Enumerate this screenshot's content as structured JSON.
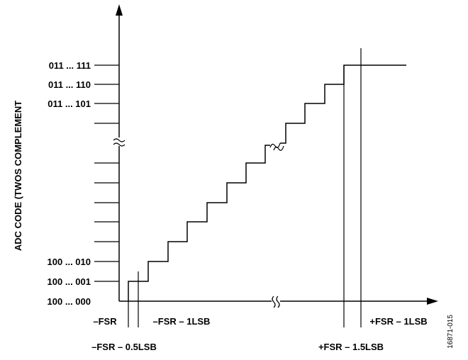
{
  "diagram": {
    "y_axis_label": "ADC CODE (TWOS COMPLEMENT",
    "y_codes_top": [
      "011 ... 111",
      "011 ... 110",
      "011 ... 101"
    ],
    "y_codes_bottom": [
      "100 ... 010",
      "100 ... 001",
      "100 ... 000"
    ],
    "x_labels": {
      "neg_fsr": "–FSR",
      "neg_fsr_minus_1lsb": "–FSR – 1LSB",
      "neg_fsr_minus_half_lsb": "–FSR – 0.5LSB",
      "pos_fsr_minus_1lsb": "+FSR – 1LSB",
      "pos_fsr_minus_1p5lsb": "+FSR – 1.5LSB"
    },
    "figure_id": "16871-015"
  }
}
